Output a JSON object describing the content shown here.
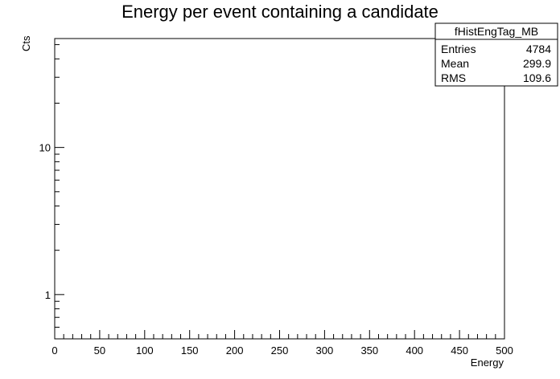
{
  "chart_data": {
    "type": "histogram",
    "title": "Energy per event containing a candidate",
    "xlabel": "Energy",
    "ylabel": "Cts",
    "x_range": [
      0,
      500
    ],
    "y_range": [
      0.5,
      55
    ],
    "y_scale": "log",
    "x_ticks": [
      0,
      50,
      100,
      150,
      200,
      250,
      300,
      350,
      400,
      450,
      500
    ],
    "x_tick_labels": [
      "0",
      "50",
      "100",
      "150",
      "200",
      "250",
      "300",
      "350",
      "400",
      "450",
      "500"
    ],
    "y_major_ticks": [
      1,
      10
    ],
    "y_tick_labels": [
      "1",
      "10"
    ],
    "bin_width": 1,
    "line_color": "#000080",
    "stats_box": {
      "name": "fHistEngTag_MB",
      "rows": [
        {
          "label": "Entries",
          "value": "4784"
        },
        {
          "label": "Mean",
          "value": "299.9"
        },
        {
          "label": "RMS",
          "value": "109.6"
        }
      ]
    }
  }
}
